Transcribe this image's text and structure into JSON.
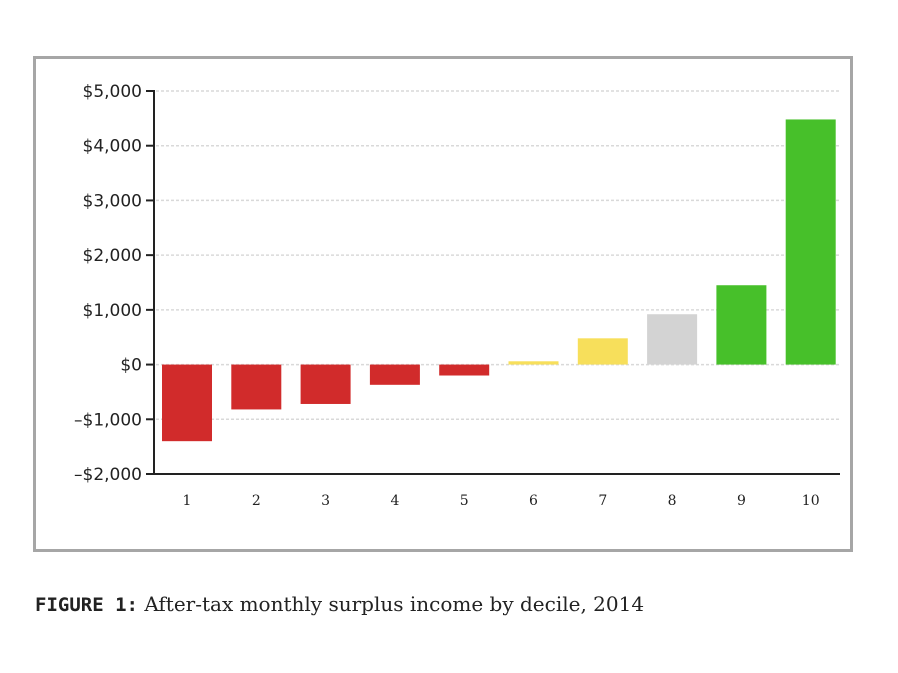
{
  "chart_data": {
    "type": "bar",
    "categories": [
      "1",
      "2",
      "3",
      "4",
      "5",
      "6",
      "7",
      "8",
      "9",
      "10"
    ],
    "values": [
      -1400,
      -820,
      -720,
      -370,
      -200,
      60,
      480,
      920,
      1450,
      4480
    ],
    "bar_colors": [
      "#d12b2b",
      "#d12b2b",
      "#d12b2b",
      "#d12b2b",
      "#d12b2b",
      "#f7df5b",
      "#f7df5b",
      "#d3d3d3",
      "#47c02a",
      "#47c02a"
    ],
    "ylim": [
      -2000,
      5000
    ],
    "yticks": [
      -2000,
      -1000,
      0,
      1000,
      2000,
      3000,
      4000,
      5000
    ],
    "ytick_labels": [
      "–$2,000",
      "–$1,000",
      "$0",
      "$1,000",
      "$2,000",
      "$3,000",
      "$4,000",
      "$5,000"
    ],
    "grid": true,
    "title": "",
    "xlabel": "",
    "ylabel": ""
  },
  "caption": {
    "prefix": "FIGURE 1:",
    "text": "After-tax monthly surplus income by decile, 2014"
  },
  "colors": {
    "frame": "#a6a6a6",
    "grid": "#d9d9d9",
    "axis": "#222222"
  }
}
